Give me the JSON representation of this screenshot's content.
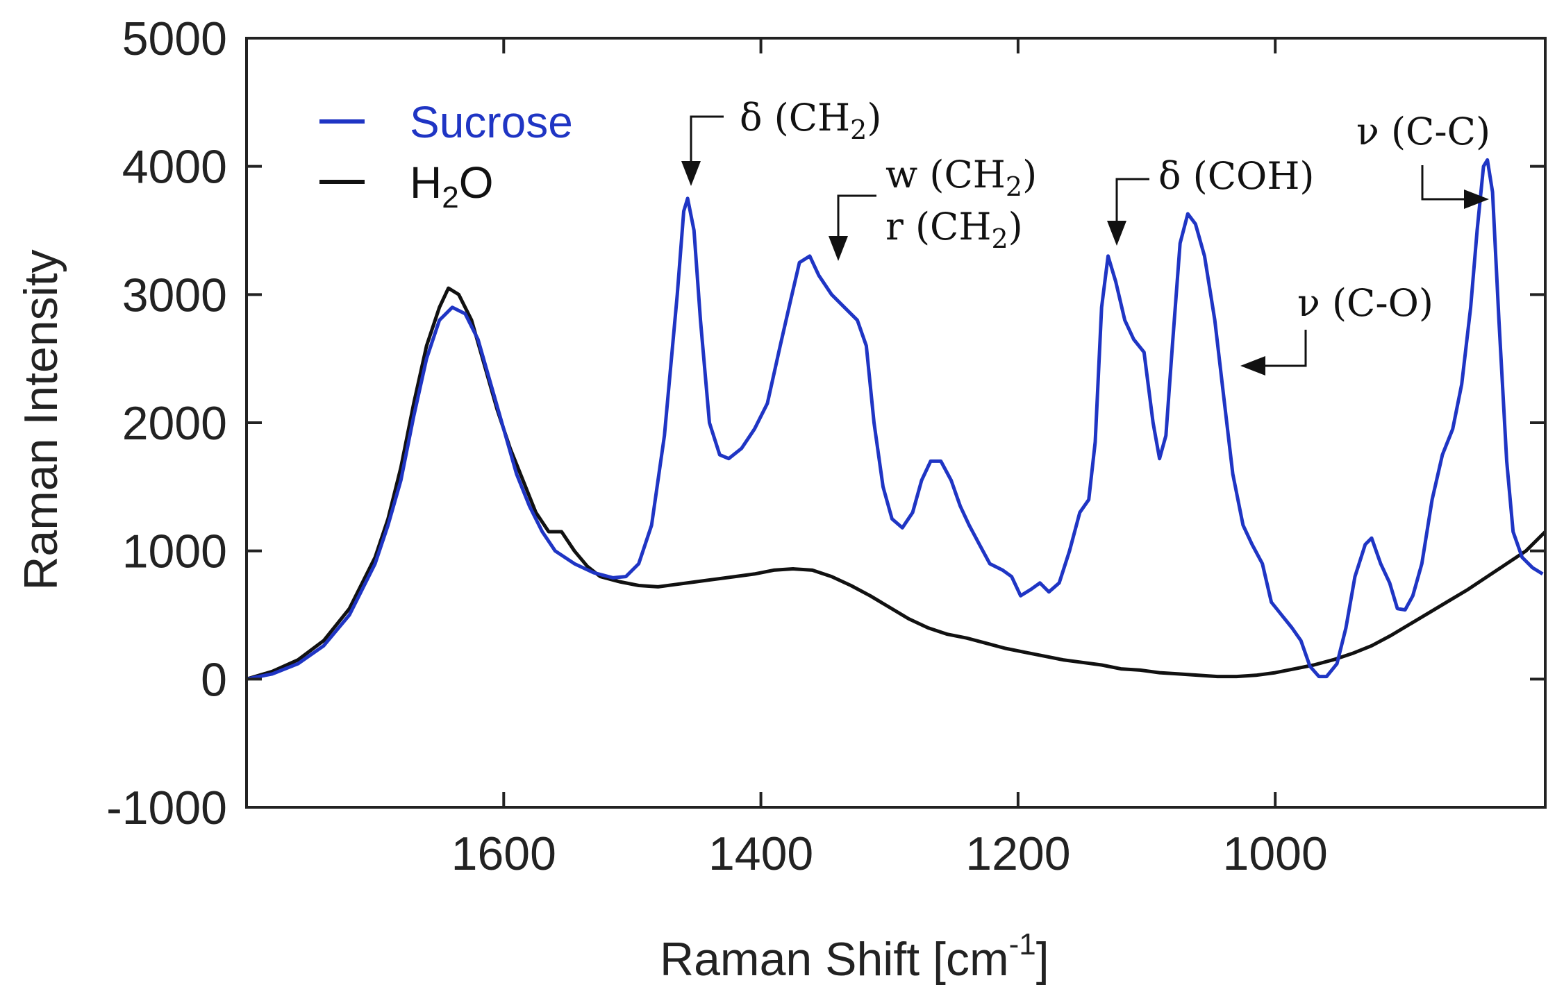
{
  "chart_data": {
    "type": "line",
    "title": "",
    "xlabel": "Raman Shift [cm",
    "xlabel_sup": "-1",
    "xlabel_end": "]",
    "ylabel": "Raman Intensity",
    "xlim": [
      1800,
      790
    ],
    "ylim": [
      -1000,
      5000
    ],
    "x_reversed": true,
    "x_ticks": [
      1600,
      1400,
      1200,
      1000
    ],
    "y_ticks": [
      -1000,
      0,
      1000,
      2000,
      3000,
      4000,
      5000
    ],
    "grid": false,
    "legend_position": "top-left",
    "series": [
      {
        "name": "Sucrose",
        "legend_label": "Sucrose",
        "color": "#1f35c4",
        "points": [
          [
            1800,
            0
          ],
          [
            1780,
            40
          ],
          [
            1760,
            120
          ],
          [
            1740,
            260
          ],
          [
            1720,
            500
          ],
          [
            1700,
            900
          ],
          [
            1690,
            1200
          ],
          [
            1680,
            1550
          ],
          [
            1670,
            2050
          ],
          [
            1660,
            2500
          ],
          [
            1650,
            2800
          ],
          [
            1640,
            2900
          ],
          [
            1630,
            2850
          ],
          [
            1620,
            2650
          ],
          [
            1610,
            2300
          ],
          [
            1600,
            1950
          ],
          [
            1590,
            1600
          ],
          [
            1580,
            1350
          ],
          [
            1570,
            1150
          ],
          [
            1560,
            1000
          ],
          [
            1545,
            900
          ],
          [
            1530,
            830
          ],
          [
            1515,
            790
          ],
          [
            1505,
            800
          ],
          [
            1495,
            900
          ],
          [
            1485,
            1200
          ],
          [
            1475,
            1900
          ],
          [
            1465,
            3000
          ],
          [
            1460,
            3650
          ],
          [
            1457,
            3750
          ],
          [
            1452,
            3500
          ],
          [
            1447,
            2800
          ],
          [
            1440,
            2000
          ],
          [
            1432,
            1750
          ],
          [
            1425,
            1720
          ],
          [
            1415,
            1800
          ],
          [
            1405,
            1950
          ],
          [
            1395,
            2150
          ],
          [
            1385,
            2600
          ],
          [
            1377,
            2950
          ],
          [
            1370,
            3250
          ],
          [
            1362,
            3300
          ],
          [
            1355,
            3150
          ],
          [
            1345,
            3000
          ],
          [
            1335,
            2900
          ],
          [
            1325,
            2800
          ],
          [
            1318,
            2600
          ],
          [
            1312,
            2000
          ],
          [
            1305,
            1500
          ],
          [
            1298,
            1250
          ],
          [
            1290,
            1180
          ],
          [
            1282,
            1300
          ],
          [
            1275,
            1550
          ],
          [
            1268,
            1700
          ],
          [
            1260,
            1700
          ],
          [
            1252,
            1550
          ],
          [
            1245,
            1350
          ],
          [
            1238,
            1200
          ],
          [
            1230,
            1050
          ],
          [
            1222,
            900
          ],
          [
            1212,
            850
          ],
          [
            1205,
            800
          ],
          [
            1198,
            650
          ],
          [
            1190,
            700
          ],
          [
            1183,
            750
          ],
          [
            1176,
            680
          ],
          [
            1168,
            750
          ],
          [
            1160,
            1000
          ],
          [
            1152,
            1300
          ],
          [
            1145,
            1400
          ],
          [
            1140,
            1850
          ],
          [
            1135,
            2900
          ],
          [
            1130,
            3300
          ],
          [
            1124,
            3100
          ],
          [
            1117,
            2800
          ],
          [
            1110,
            2650
          ],
          [
            1102,
            2550
          ],
          [
            1095,
            2000
          ],
          [
            1090,
            1720
          ],
          [
            1085,
            1900
          ],
          [
            1080,
            2600
          ],
          [
            1074,
            3400
          ],
          [
            1068,
            3630
          ],
          [
            1062,
            3550
          ],
          [
            1055,
            3300
          ],
          [
            1047,
            2800
          ],
          [
            1040,
            2200
          ],
          [
            1033,
            1600
          ],
          [
            1025,
            1200
          ],
          [
            1018,
            1050
          ],
          [
            1010,
            900
          ],
          [
            1003,
            600
          ],
          [
            995,
            500
          ],
          [
            987,
            400
          ],
          [
            980,
            300
          ],
          [
            973,
            100
          ],
          [
            966,
            20
          ],
          [
            960,
            20
          ],
          [
            952,
            120
          ],
          [
            945,
            400
          ],
          [
            938,
            800
          ],
          [
            930,
            1050
          ],
          [
            925,
            1100
          ],
          [
            918,
            900
          ],
          [
            911,
            750
          ],
          [
            905,
            550
          ],
          [
            899,
            540
          ],
          [
            893,
            650
          ],
          [
            886,
            900
          ],
          [
            878,
            1400
          ],
          [
            870,
            1750
          ],
          [
            862,
            1950
          ],
          [
            855,
            2300
          ],
          [
            848,
            2900
          ],
          [
            843,
            3500
          ],
          [
            838,
            4000
          ],
          [
            835,
            4050
          ],
          [
            831,
            3800
          ],
          [
            826,
            2800
          ],
          [
            820,
            1700
          ],
          [
            815,
            1150
          ],
          [
            808,
            950
          ],
          [
            800,
            870
          ],
          [
            792,
            820
          ]
        ]
      },
      {
        "name": "H2O",
        "legend_label": "H",
        "legend_sub": "2",
        "legend_end": "O",
        "color": "#111111",
        "points": [
          [
            1800,
            0
          ],
          [
            1780,
            60
          ],
          [
            1760,
            150
          ],
          [
            1740,
            300
          ],
          [
            1720,
            550
          ],
          [
            1700,
            950
          ],
          [
            1690,
            1250
          ],
          [
            1680,
            1650
          ],
          [
            1670,
            2150
          ],
          [
            1660,
            2600
          ],
          [
            1650,
            2900
          ],
          [
            1643,
            3050
          ],
          [
            1635,
            3000
          ],
          [
            1625,
            2800
          ],
          [
            1615,
            2450
          ],
          [
            1605,
            2100
          ],
          [
            1595,
            1800
          ],
          [
            1585,
            1550
          ],
          [
            1575,
            1300
          ],
          [
            1565,
            1150
          ],
          [
            1555,
            1150
          ],
          [
            1545,
            1000
          ],
          [
            1535,
            880
          ],
          [
            1525,
            800
          ],
          [
            1510,
            760
          ],
          [
            1495,
            730
          ],
          [
            1480,
            720
          ],
          [
            1465,
            740
          ],
          [
            1450,
            760
          ],
          [
            1435,
            780
          ],
          [
            1420,
            800
          ],
          [
            1405,
            820
          ],
          [
            1390,
            850
          ],
          [
            1375,
            860
          ],
          [
            1360,
            850
          ],
          [
            1345,
            800
          ],
          [
            1330,
            730
          ],
          [
            1315,
            650
          ],
          [
            1300,
            560
          ],
          [
            1285,
            470
          ],
          [
            1270,
            400
          ],
          [
            1255,
            350
          ],
          [
            1240,
            320
          ],
          [
            1225,
            280
          ],
          [
            1210,
            240
          ],
          [
            1195,
            210
          ],
          [
            1180,
            180
          ],
          [
            1165,
            150
          ],
          [
            1150,
            130
          ],
          [
            1135,
            110
          ],
          [
            1120,
            80
          ],
          [
            1105,
            70
          ],
          [
            1090,
            50
          ],
          [
            1075,
            40
          ],
          [
            1060,
            30
          ],
          [
            1045,
            20
          ],
          [
            1030,
            20
          ],
          [
            1015,
            30
          ],
          [
            1000,
            50
          ],
          [
            985,
            80
          ],
          [
            970,
            110
          ],
          [
            955,
            150
          ],
          [
            940,
            200
          ],
          [
            925,
            260
          ],
          [
            910,
            340
          ],
          [
            895,
            430
          ],
          [
            880,
            520
          ],
          [
            865,
            610
          ],
          [
            850,
            700
          ],
          [
            835,
            800
          ],
          [
            820,
            900
          ],
          [
            805,
            1000
          ],
          [
            790,
            1150
          ]
        ]
      }
    ],
    "annotations": [
      {
        "text": "δ (CH",
        "sub": "2",
        "end": ")"
      },
      {
        "text": "w (CH",
        "sub": "2",
        "end": ")"
      },
      {
        "text": "r (CH",
        "sub": "2",
        "end": ")"
      },
      {
        "text": "δ (COH)",
        "sub": "",
        "end": ""
      },
      {
        "text": "ν (C-O)",
        "sub": "",
        "end": ""
      },
      {
        "text": "ν (C-C)",
        "sub": "",
        "end": ""
      }
    ]
  }
}
